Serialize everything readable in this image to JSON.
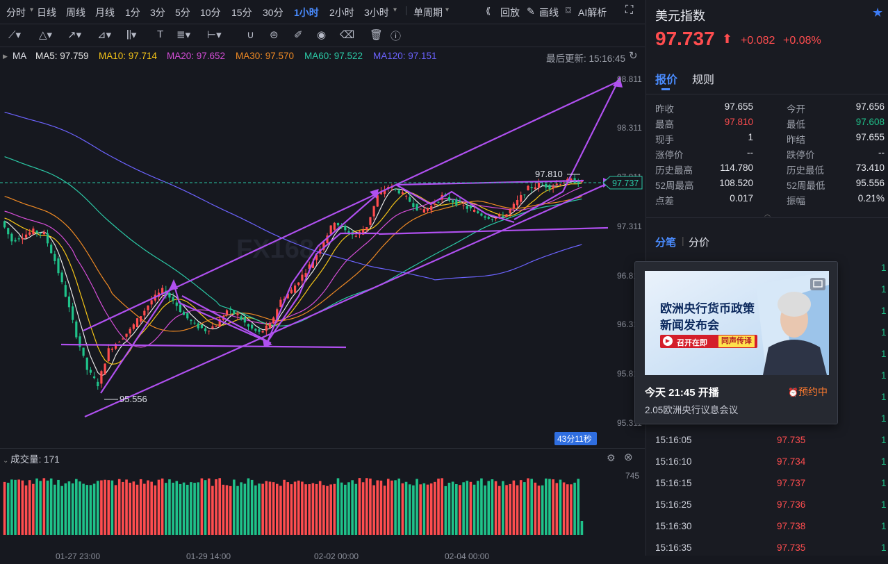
{
  "toolbar": {
    "periods": [
      "分时",
      "日线",
      "周线",
      "月线",
      "1分",
      "3分",
      "5分",
      "10分",
      "15分",
      "30分",
      "1小时",
      "2小时",
      "3小时",
      "单周期"
    ],
    "active_period": "1小时",
    "replay": "回放",
    "draw": "画线",
    "ai": "AI解析"
  },
  "ma_bar": {
    "label": "MA",
    "items": [
      {
        "text": "MA5: 97.759",
        "color": "#e8e8e8"
      },
      {
        "text": "MA10: 97.714",
        "color": "#f5c518"
      },
      {
        "text": "MA20: 97.652",
        "color": "#d54ed8"
      },
      {
        "text": "MA30: 97.570",
        "color": "#f08a24"
      },
      {
        "text": "MA60: 97.522",
        "color": "#2bc9a6"
      },
      {
        "text": "MA120: 97.151",
        "color": "#6c63ff"
      }
    ],
    "last_update": "最后更新: 15:16:45"
  },
  "chart_data": {
    "type": "candlestick",
    "y_axis_labels": [
      "98.811",
      "98.311",
      "97.811",
      "97.311",
      "96.811",
      "96.311",
      "95.811",
      "95.311"
    ],
    "current_price_tag": "97.737",
    "high_marker": "97.810",
    "low_marker": "95.556",
    "countdown": "43分11秒",
    "x_axis_labels": [
      "01-27 23:00",
      "01-29 14:00",
      "02-02 00:00",
      "02-04 00:00"
    ],
    "prices": [
      97.35,
      97.15,
      97.2,
      97.25,
      97.22,
      96.95,
      96.6,
      96.2,
      95.85,
      95.7,
      96.05,
      96.15,
      96.25,
      96.4,
      96.55,
      96.65,
      96.55,
      96.4,
      96.3,
      96.25,
      96.3,
      96.45,
      96.4,
      96.28,
      96.22,
      96.3,
      96.55,
      96.65,
      96.8,
      96.95,
      97.15,
      97.35,
      97.25,
      97.2,
      97.3,
      97.6,
      97.7,
      97.65,
      97.55,
      97.45,
      97.5,
      97.6,
      97.55,
      97.5,
      97.45,
      97.4,
      97.38,
      97.42,
      97.55,
      97.68,
      97.72,
      97.7,
      97.74,
      97.76,
      97.74
    ],
    "volume_max_label": "745",
    "volume_label": "成交量: 171"
  },
  "header": {
    "name": "美元指数",
    "price": "97.737",
    "change": "+0.082",
    "change_pct": "+0.08%",
    "up_color": "#ff4d4f",
    "down_color": "#1fc28a"
  },
  "tabs": {
    "quote": "报价",
    "rules": "规则"
  },
  "quote_rows": [
    [
      {
        "label": "昨收",
        "value": "97.655",
        "c": "n"
      },
      {
        "label": "今开",
        "value": "97.656",
        "c": "n"
      }
    ],
    [
      {
        "label": "最高",
        "value": "97.810",
        "c": "up"
      },
      {
        "label": "最低",
        "value": "97.608",
        "c": "down"
      }
    ],
    [
      {
        "label": "现手",
        "value": "1",
        "c": "n"
      },
      {
        "label": "昨结",
        "value": "97.655",
        "c": "n"
      }
    ],
    [
      {
        "label": "涨停价",
        "value": "--",
        "c": "n"
      },
      {
        "label": "跌停价",
        "value": "--",
        "c": "n"
      }
    ],
    [
      {
        "label": "历史最高",
        "value": "114.780",
        "c": "n"
      },
      {
        "label": "历史最低",
        "value": "73.410",
        "c": "n"
      }
    ],
    [
      {
        "label": "52周最高",
        "value": "108.520",
        "c": "n"
      },
      {
        "label": "52周最低",
        "value": "95.556",
        "c": "n"
      }
    ],
    [
      {
        "label": "点差",
        "value": "0.017",
        "c": "n"
      },
      {
        "label": "振幅",
        "value": "0.21%",
        "c": "n"
      }
    ]
  ],
  "tick_tabs": {
    "trades": "分笔",
    "by_price": "分价"
  },
  "ticks": [
    {
      "time": "15:16:05",
      "price": "97.735",
      "qty": "1"
    },
    {
      "time": "15:16:10",
      "price": "97.734",
      "qty": "1"
    },
    {
      "time": "15:16:15",
      "price": "97.737",
      "qty": "1"
    },
    {
      "time": "15:16:25",
      "price": "97.736",
      "qty": "1"
    },
    {
      "time": "15:16:30",
      "price": "97.738",
      "qty": "1"
    },
    {
      "time": "15:16:35",
      "price": "97.735",
      "qty": "1"
    }
  ],
  "partial_qty": [
    "1",
    "1",
    "1",
    "1",
    "1",
    "1",
    "1",
    "1"
  ],
  "popup": {
    "banner_title_1": "欧洲央行货币政策",
    "banner_title_2": "新闻发布会",
    "banner_badge": "召开在即",
    "banner_badge2": "同声传译",
    "time": "今天 21:45 开播",
    "status": "预约中",
    "desc": "2.05欧洲央行议息会议"
  }
}
